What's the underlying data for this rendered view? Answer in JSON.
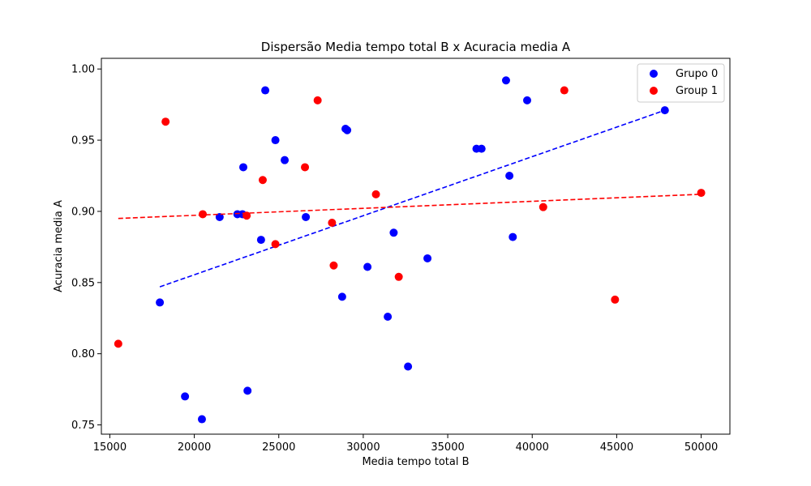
{
  "chart_data": {
    "type": "scatter",
    "title": "Dispersão Media tempo total B x Acuracia media A",
    "xlabel": "Media tempo total B",
    "ylabel": "Acuracia media A",
    "xlim": [
      14500,
      51700
    ],
    "ylim": [
      0.7435,
      1.0075
    ],
    "xticks": [
      15000,
      20000,
      25000,
      30000,
      35000,
      40000,
      45000,
      50000
    ],
    "yticks": [
      0.75,
      0.8,
      0.85,
      0.9,
      0.95,
      1.0
    ],
    "xtick_labels": [
      "15000",
      "20000",
      "25000",
      "30000",
      "35000",
      "40000",
      "45000",
      "50000"
    ],
    "ytick_labels": [
      "0.75",
      "0.80",
      "0.85",
      "0.90",
      "0.95",
      "1.00"
    ],
    "grid": false,
    "legend_position": "top-right",
    "series": [
      {
        "name": "Grupo 0",
        "color": "#0000ff",
        "points": [
          [
            17960,
            0.836
          ],
          [
            19450,
            0.77
          ],
          [
            20450,
            0.754
          ],
          [
            21500,
            0.896
          ],
          [
            22550,
            0.898
          ],
          [
            22850,
            0.898
          ],
          [
            22900,
            0.931
          ],
          [
            23150,
            0.774
          ],
          [
            23950,
            0.88
          ],
          [
            24200,
            0.985
          ],
          [
            24800,
            0.95
          ],
          [
            25350,
            0.936
          ],
          [
            26600,
            0.896
          ],
          [
            28750,
            0.84
          ],
          [
            28950,
            0.958
          ],
          [
            29050,
            0.957
          ],
          [
            30250,
            0.861
          ],
          [
            31450,
            0.826
          ],
          [
            31800,
            0.885
          ],
          [
            32650,
            0.791
          ],
          [
            33800,
            0.867
          ],
          [
            36700,
            0.944
          ],
          [
            37000,
            0.944
          ],
          [
            38450,
            0.992
          ],
          [
            38650,
            0.925
          ],
          [
            38850,
            0.882
          ],
          [
            39700,
            0.978
          ],
          [
            47850,
            0.971
          ]
        ],
        "trendline": [
          [
            17960,
            0.847
          ],
          [
            47850,
            0.971
          ]
        ]
      },
      {
        "name": "Group 1",
        "color": "#ff0000",
        "points": [
          [
            15500,
            0.807
          ],
          [
            18300,
            0.963
          ],
          [
            20500,
            0.898
          ],
          [
            23100,
            0.897
          ],
          [
            24050,
            0.922
          ],
          [
            24800,
            0.877
          ],
          [
            26550,
            0.931
          ],
          [
            27300,
            0.978
          ],
          [
            28150,
            0.892
          ],
          [
            28250,
            0.862
          ],
          [
            30750,
            0.912
          ],
          [
            32100,
            0.854
          ],
          [
            40650,
            0.903
          ],
          [
            41900,
            0.985
          ],
          [
            44900,
            0.838
          ],
          [
            50000,
            0.913
          ]
        ],
        "trendline": [
          [
            15500,
            0.895
          ],
          [
            50000,
            0.912
          ]
        ]
      }
    ]
  }
}
